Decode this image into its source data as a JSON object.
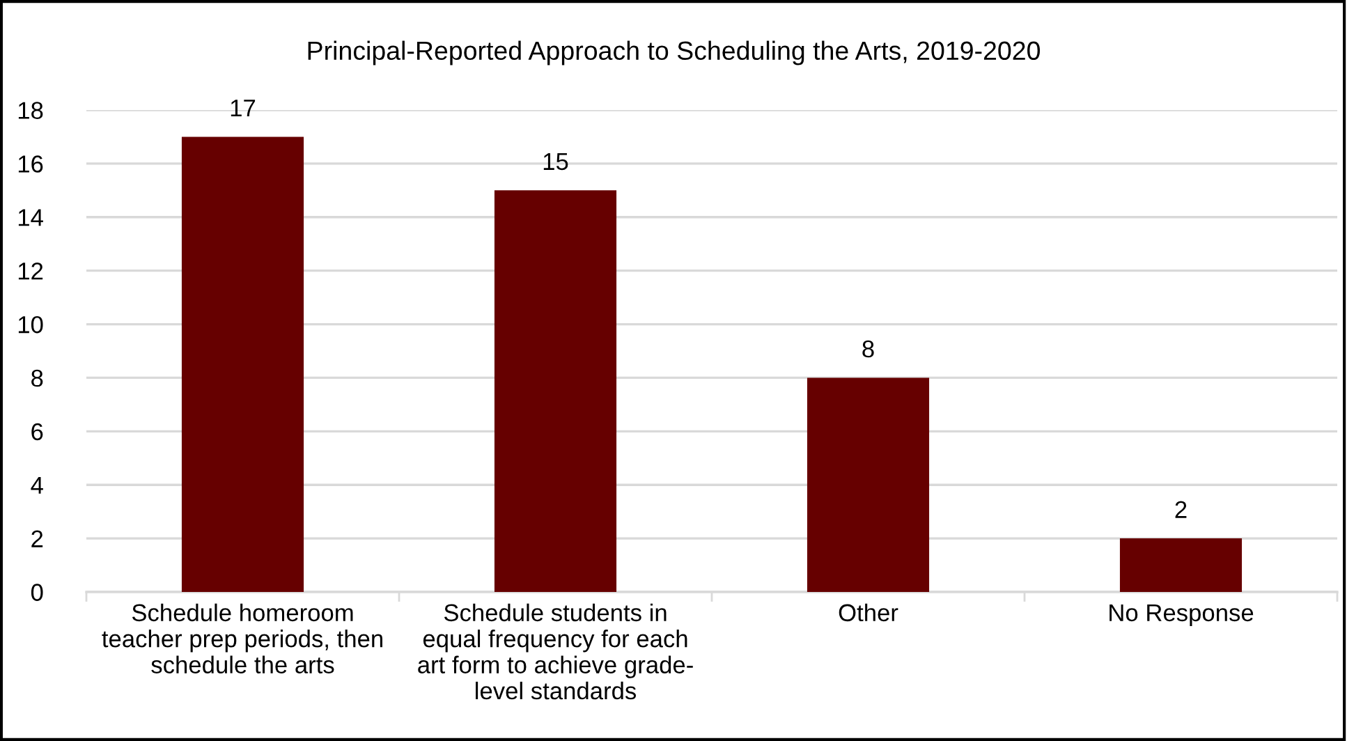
{
  "chart_data": {
    "type": "bar",
    "title": "Principal-Reported Approach to Scheduling the Arts, 2019-2020",
    "categories": [
      "Schedule homeroom\nteacher prep periods, then\nschedule the arts",
      "Schedule students in\nequal frequency for each\nart form to achieve grade-\nlevel standards",
      "Other",
      "No Response"
    ],
    "values": [
      17,
      15,
      8,
      2
    ],
    "color": "#660000",
    "ylim": [
      0,
      18
    ],
    "yticks": [
      0,
      2,
      4,
      6,
      8,
      10,
      12,
      14,
      16,
      18
    ],
    "grid": "y",
    "data_labels": true
  }
}
